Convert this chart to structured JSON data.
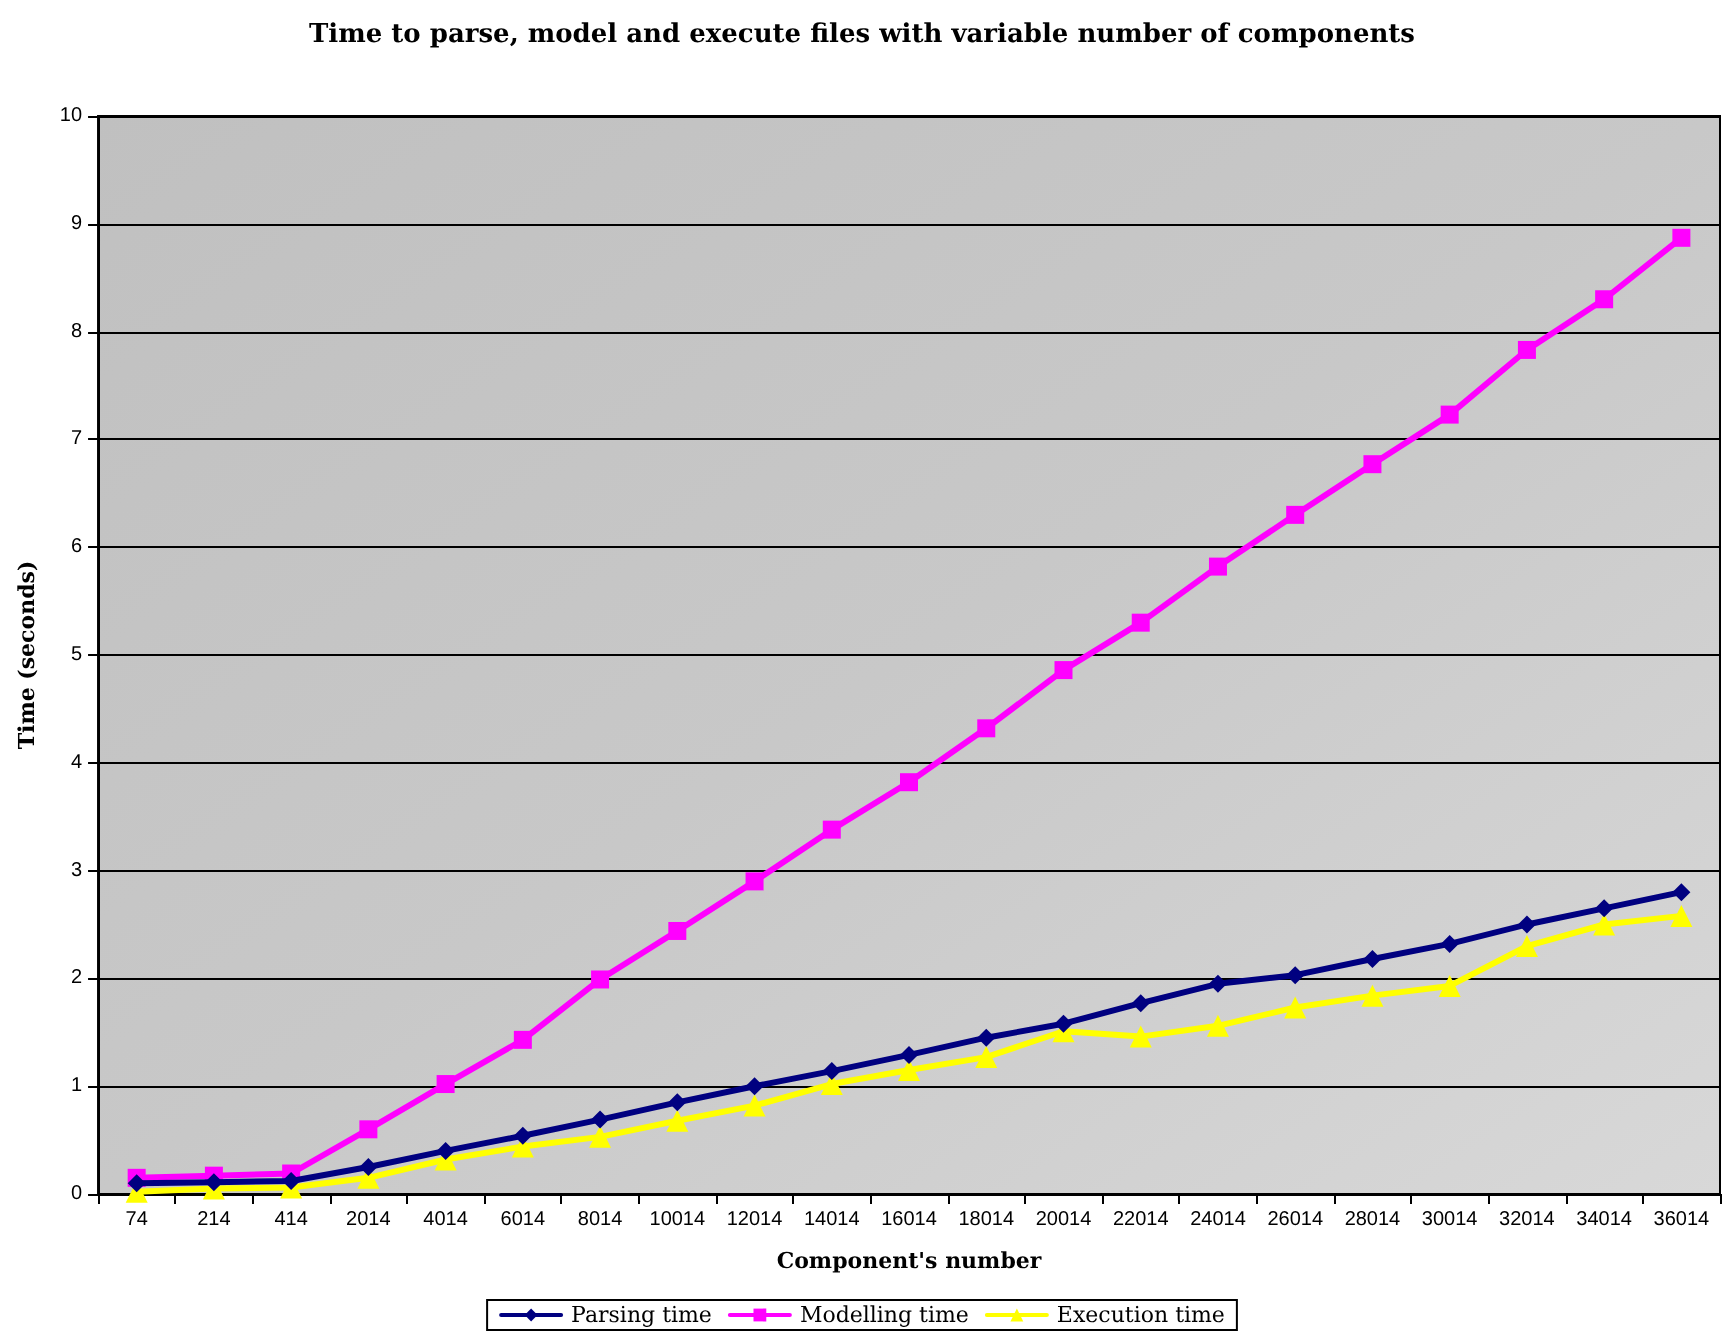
{
  "chart_data": {
    "type": "line",
    "title": "Time to parse, model and execute files with variable number of components",
    "xlabel": "Component's number",
    "ylabel": "Time (seconds)",
    "categories": [
      "74",
      "214",
      "414",
      "2014",
      "4014",
      "6014",
      "8014",
      "10014",
      "12014",
      "14014",
      "16014",
      "18014",
      "20014",
      "22014",
      "24014",
      "26014",
      "28014",
      "30014",
      "32014",
      "34014",
      "36014"
    ],
    "series": [
      {
        "name": "Parsing time",
        "color": "#000080",
        "marker": "diamond",
        "values": [
          0.1,
          0.11,
          0.12,
          0.25,
          0.4,
          0.54,
          0.69,
          0.85,
          1.0,
          1.14,
          1.29,
          1.45,
          1.58,
          1.77,
          1.95,
          2.03,
          2.18,
          2.32,
          2.5,
          2.65,
          2.8
        ]
      },
      {
        "name": "Modelling time",
        "color": "#ff00ff",
        "marker": "square",
        "values": [
          0.15,
          0.17,
          0.19,
          0.6,
          1.02,
          1.43,
          1.99,
          2.44,
          2.9,
          3.38,
          3.82,
          4.32,
          4.86,
          5.3,
          5.82,
          6.3,
          6.77,
          7.23,
          7.83,
          8.3,
          8.87
        ]
      },
      {
        "name": "Execution time",
        "color": "#ffff00",
        "marker": "triangle",
        "values": [
          0.02,
          0.05,
          0.06,
          0.15,
          0.32,
          0.44,
          0.53,
          0.68,
          0.82,
          1.02,
          1.15,
          1.27,
          1.51,
          1.46,
          1.56,
          1.73,
          1.84,
          1.93,
          2.3,
          2.5,
          2.58
        ]
      }
    ],
    "ylim": [
      0,
      10
    ],
    "yticks": [
      0,
      1,
      2,
      3,
      4,
      5,
      6,
      7,
      8,
      9,
      10
    ],
    "grid": "y",
    "legend": "bottom",
    "line_style": "solid"
  }
}
